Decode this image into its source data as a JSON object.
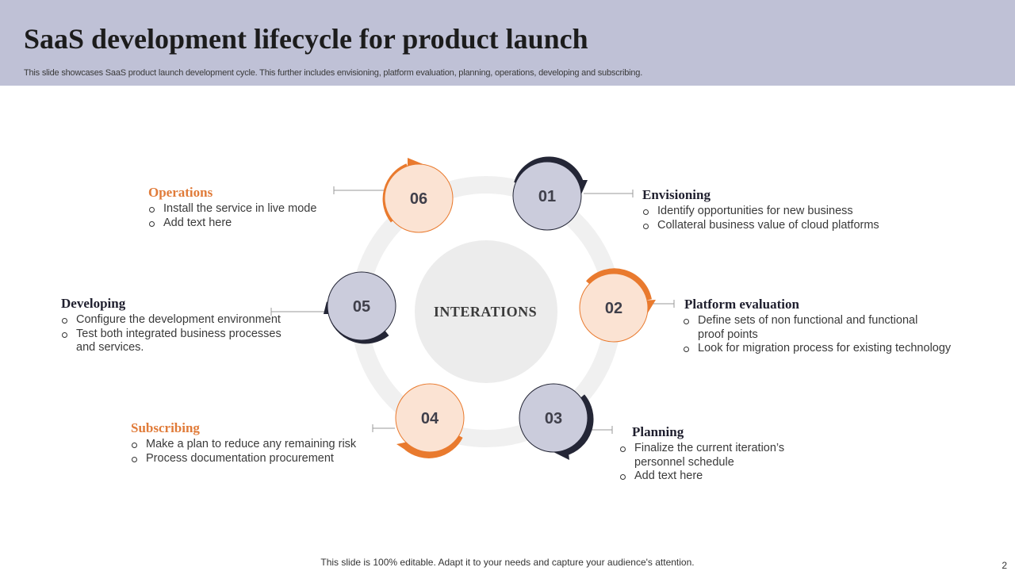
{
  "header": {
    "title": "SaaS development  lifecycle for product launch",
    "subtitle": "This slide showcases SaaS product launch development cycle. This further includes envisioning, platform evaluation, planning, operations, developing and subscribing."
  },
  "colors": {
    "header_bg": "#bfc1d6",
    "orange": "#e97a2e",
    "orange_fill": "#fbe3d3",
    "navy": "#242636",
    "gray_fill": "#cbccdc"
  },
  "diagram": {
    "center_label": "INTERATIONS",
    "nodes": [
      {
        "number": "01",
        "title": "Envisioning",
        "bullets": [
          "Identify opportunities for new business",
          "Collateral business value of cloud platforms"
        ]
      },
      {
        "number": "02",
        "title": "Platform evaluation",
        "bullets": [
          "Define sets of non functional and functional proof points",
          "Look for migration process for existing technology"
        ]
      },
      {
        "number": "03",
        "title": "Planning",
        "bullets": [
          "Finalize the current iteration’s personnel schedule",
          "Add text here"
        ]
      },
      {
        "number": "04",
        "title": "Subscribing",
        "bullets": [
          "Make a plan to reduce any remaining risk",
          "Process documentation procurement"
        ]
      },
      {
        "number": "05",
        "title": "Developing",
        "bullets": [
          "Configure the development environment",
          "Test both integrated business processes and services."
        ]
      },
      {
        "number": "06",
        "title": "Operations",
        "bullets": [
          "Install the service in live mode",
          "Add text here"
        ]
      }
    ]
  },
  "footer": {
    "note": "This slide is 100% editable. Adapt it to your needs and capture your audience's attention.",
    "page_number": "2"
  }
}
